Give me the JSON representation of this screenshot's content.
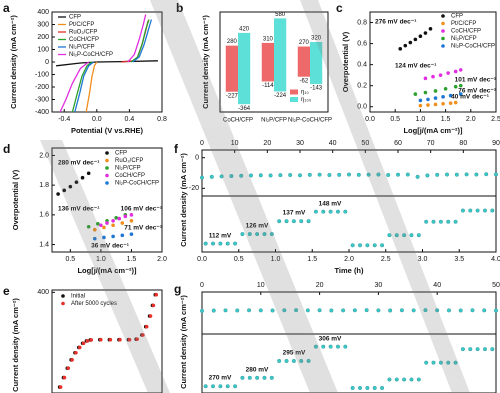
{
  "chart_data": [
    {
      "type": "line",
      "panel": "a",
      "xlabel": "Potential (V vs.RHE)",
      "ylabel": "Current density (mA cm⁻²)",
      "xlim": [
        -0.55,
        0.8
      ],
      "xticks": [
        -0.4,
        {
          "value": 0,
          "label": "0.0"
        },
        0.4,
        0.8
      ],
      "ylim": [
        -400,
        400
      ],
      "yticks": [
        400,
        300,
        200,
        100,
        0,
        -100,
        -200,
        -300,
        -400
      ],
      "series": [
        {
          "name": "CFP",
          "color": "#111111",
          "x": [
            -0.5,
            -0.2,
            0,
            0.3,
            0.75
          ],
          "values": [
            -30,
            -8,
            0,
            3,
            10
          ]
        },
        {
          "name": "Pt/C/CFP",
          "color": "#f28e1c",
          "x": [
            -0.13,
            -0.09,
            -0.06,
            -0.03,
            0
          ],
          "values": [
            -400,
            -250,
            -120,
            -30,
            0
          ]
        },
        {
          "name": "RuO₂/CFP",
          "color": "#e8302a",
          "x": [
            0.3,
            0.45,
            0.5,
            0.55,
            0.6,
            0.63
          ],
          "values": [
            0,
            10,
            40,
            130,
            250,
            330
          ]
        },
        {
          "name": "CoCH/CFP",
          "color": "#2ca02c",
          "x": [
            -0.3,
            -0.24,
            -0.18,
            -0.12,
            -0.06,
            null,
            0.42,
            0.5,
            0.56,
            0.6,
            0.64
          ],
          "values": [
            -400,
            -250,
            -110,
            -30,
            0,
            null,
            0,
            40,
            150,
            260,
            340
          ]
        },
        {
          "name": "Ni₂P/CFP",
          "color": "#1f77d4",
          "x": [
            -0.27,
            -0.21,
            -0.16,
            -0.1,
            -0.04,
            null,
            0.44,
            0.52,
            0.58,
            0.63,
            0.67
          ],
          "values": [
            -400,
            -250,
            -110,
            -30,
            0,
            null,
            0,
            40,
            140,
            250,
            340
          ]
        },
        {
          "name": "Ni₂P-CoCH/CFP",
          "color": "#e02ee0",
          "x": [
            -0.45,
            -0.38,
            -0.3,
            -0.2,
            -0.1,
            null,
            0.38,
            0.46,
            0.52,
            0.57,
            0.6
          ],
          "values": [
            -400,
            -300,
            -170,
            -50,
            0,
            null,
            0,
            60,
            180,
            300,
            380
          ]
        }
      ]
    },
    {
      "type": "bar",
      "panel": "b",
      "ylabel": "Current density (mA cm⁻²)",
      "ylim": [
        -450,
        650
      ],
      "categories": [
        "CoCH/CFP",
        "Ni₂P/CFP",
        "Ni₂P-CoCH/CFP"
      ],
      "series": [
        {
          "name": "η₁₀",
          "color": "#ee6a6a",
          "lower": [
            -227,
            -114,
            -62
          ],
          "upper": [
            280,
            310,
            270
          ]
        },
        {
          "name": "η₁₀₀",
          "color": "#5ce0d8",
          "lower": [
            -364,
            -224,
            -143
          ],
          "upper": [
            420,
            580,
            320
          ]
        }
      ]
    },
    {
      "type": "scatter",
      "panel": "c",
      "xlabel": "Log[j/(mA cm⁻²)]",
      "ylabel": "Overpotential (V)",
      "xlim": [
        0,
        2.5
      ],
      "xticks": [
        {
          "value": 0,
          "label": "0.0"
        },
        0.5,
        {
          "value": 1,
          "label": "1.0"
        },
        1.5,
        {
          "value": 2,
          "label": "2.0"
        },
        2.5
      ],
      "ylim": [
        -0.05,
        0.9
      ],
      "yticks": [
        {
          "value": 0,
          "label": "0.0"
        },
        0.2,
        0.4,
        0.6,
        0.8
      ],
      "series": [
        {
          "name": "CFP",
          "color": "#111111",
          "x": [
            0.6,
            0.7,
            0.8,
            0.9,
            1.0,
            1.1,
            1.2
          ],
          "values": [
            0.55,
            0.58,
            0.61,
            0.64,
            0.67,
            0.7,
            0.74
          ]
        },
        {
          "name": "Pt/C/CFP",
          "color": "#f28e1c",
          "x": [
            1.0,
            1.15,
            1.3,
            1.45,
            1.6,
            1.7
          ],
          "values": [
            0.01,
            0.016,
            0.022,
            0.028,
            0.034,
            0.04
          ]
        },
        {
          "name": "CoCH/CFP",
          "color": "#e02ee0",
          "x": [
            1.1,
            1.25,
            1.4,
            1.55,
            1.7,
            1.8
          ],
          "values": [
            0.27,
            0.285,
            0.3,
            0.32,
            0.335,
            0.35
          ]
        },
        {
          "name": "Ni₂P/CFP",
          "color": "#2ca02c",
          "x": [
            0.9,
            1.1,
            1.3,
            1.5,
            1.7,
            1.8
          ],
          "values": [
            0.12,
            0.135,
            0.15,
            0.17,
            0.19,
            0.2
          ]
        },
        {
          "name": "Ni₂P-CoCH/CFP",
          "color": "#1f77d4",
          "x": [
            1.0,
            1.15,
            1.3,
            1.45,
            1.6,
            1.8
          ],
          "values": [
            0.06,
            0.07,
            0.082,
            0.094,
            0.106,
            0.12
          ]
        }
      ],
      "annotations": [
        {
          "text": "276 mV dec⁻¹",
          "color": "#111111"
        },
        {
          "text": "124 mV dec⁻¹",
          "color": "#e02ee0"
        },
        {
          "text": "101 mV dec⁻¹",
          "color": "#2ca02c"
        },
        {
          "text": "76 mV dec⁻¹",
          "color": "#1f77d4"
        },
        {
          "text": "40 mV dec⁻¹",
          "color": "#f28e1c"
        }
      ]
    },
    {
      "type": "scatter",
      "panel": "d",
      "xlabel": "Log[j/(mA cm⁻²)]",
      "ylabel": "Overpotential (V)",
      "xlim": [
        0.2,
        2.0
      ],
      "xticks": [
        0.5,
        {
          "value": 1,
          "label": "1.0"
        },
        1.5,
        {
          "value": 2,
          "label": "2.0"
        }
      ],
      "ylim": [
        1.35,
        2.05
      ],
      "yticks": [
        1.4,
        1.6,
        1.8,
        {
          "value": 2,
          "label": "2.0"
        }
      ],
      "series": [
        {
          "name": "CFP",
          "color": "#111111",
          "x": [
            0.3,
            0.4,
            0.5,
            0.6,
            0.7,
            0.8
          ],
          "values": [
            1.74,
            1.765,
            1.79,
            1.82,
            1.85,
            1.88
          ]
        },
        {
          "name": "RuO₂/CFP",
          "color": "#f28e1c",
          "x": [
            0.9,
            1.05,
            1.2,
            1.35,
            1.5
          ],
          "values": [
            1.5,
            1.515,
            1.53,
            1.545,
            1.56
          ]
        },
        {
          "name": "Ni₂P/CFP",
          "color": "#2ca02c",
          "x": [
            0.8,
            0.95,
            1.1,
            1.25,
            1.4
          ],
          "values": [
            1.52,
            1.54,
            1.56,
            1.58,
            1.6
          ]
        },
        {
          "name": "CoCH/CFP",
          "color": "#e02ee0",
          "x": [
            1.0,
            1.1,
            1.2,
            1.3,
            1.4,
            1.5
          ],
          "values": [
            1.53,
            1.545,
            1.56,
            1.575,
            1.59,
            1.6
          ]
        },
        {
          "name": "Ni₂P-CoCH/CFP",
          "color": "#1f77d4",
          "x": [
            0.9,
            1.05,
            1.2,
            1.35,
            1.5
          ],
          "values": [
            1.44,
            1.448,
            1.455,
            1.462,
            1.47
          ]
        }
      ],
      "annotations": [
        {
          "text": "280 mV dec⁻¹",
          "color": "#111111"
        },
        {
          "text": "136 mV dec⁻¹",
          "color": "#2ca02c"
        },
        {
          "text": "106 mV dec⁻¹",
          "color": "#e02ee0"
        },
        {
          "text": "71 mV dec⁻¹",
          "color": "#f28e1c"
        },
        {
          "text": "36 mV dec⁻¹",
          "color": "#1f77d4"
        }
      ]
    },
    {
      "type": "scatter",
      "panel": "e",
      "ylabel": "Current density (mA cm⁻²)",
      "xlim": [
        -0.5,
        0.65
      ],
      "ylim": [
        -450,
        420
      ],
      "yticks": [
        400
      ],
      "series": [
        {
          "name": "Initial",
          "color": "#111111",
          "x": [
            -0.42,
            -0.38,
            -0.34,
            -0.3,
            -0.26,
            -0.22,
            -0.18,
            -0.14,
            -0.1,
            0,
            0.1,
            0.2,
            0.3,
            0.38,
            0.44,
            0.48,
            0.52,
            0.55,
            0.58
          ],
          "values": [
            -400,
            -320,
            -240,
            -170,
            -110,
            -65,
            -30,
            -10,
            -2,
            0,
            0,
            0,
            0,
            5,
            40,
            110,
            200,
            290,
            380
          ]
        },
        {
          "name": "After 5000 cycles",
          "color": "#e8302a",
          "x": [
            -0.41,
            -0.37,
            -0.33,
            -0.29,
            -0.25,
            -0.21,
            -0.17,
            -0.13,
            -0.09,
            0.01,
            0.11,
            0.21,
            0.31,
            0.39,
            0.45,
            0.49,
            0.53,
            0.56,
            0.59
          ],
          "values": [
            -400,
            -320,
            -240,
            -170,
            -110,
            -65,
            -30,
            -10,
            -2,
            0,
            0,
            0,
            0,
            5,
            40,
            110,
            200,
            290,
            380
          ]
        }
      ]
    },
    {
      "type": "scatter",
      "panel": "f",
      "ylabel": "Current density (mA cm⁻²)",
      "xaxis": "top",
      "xlim": [
        0,
        90
      ],
      "xticks": [
        0,
        10,
        20,
        30,
        40,
        50,
        60,
        70,
        80,
        90
      ],
      "ylim": [
        -25,
        5
      ],
      "yticks": [
        0,
        -20
      ],
      "series": [
        {
          "name": null,
          "color": "#3cc8c8",
          "x": [
            0,
            3,
            6,
            9,
            12,
            15,
            18,
            21,
            24,
            27,
            30,
            33,
            36,
            39,
            42,
            45,
            48,
            51,
            54,
            57,
            60,
            63,
            66,
            69,
            72,
            75,
            78,
            81,
            84,
            87,
            90
          ],
          "values": [
            -13,
            -12.5,
            -12.2,
            -12,
            -11.8,
            -11.6,
            -11.5,
            -11.6,
            -11.4,
            -11.3,
            -11.5,
            -11.2,
            -11.1,
            -11.3,
            -11.2,
            -11,
            -11.2,
            -11.1,
            -11,
            -11.3,
            -11.1,
            -11,
            -12.5,
            -11.6,
            -11.2,
            -11,
            -11.1,
            -10.9,
            -11,
            -10.8,
            -10.9
          ]
        }
      ]
    },
    {
      "type": "scatter",
      "xlabel": "Time (h)",
      "xlim": [
        0,
        4
      ],
      "xticks": [
        {
          "value": 0,
          "label": "0.0"
        },
        0.5,
        {
          "value": 1,
          "label": "1.0"
        },
        1.5,
        {
          "value": 2,
          "label": "2.0"
        },
        2.5,
        {
          "value": 3,
          "label": "3.0"
        },
        3.5,
        {
          "value": 4,
          "label": "4.0"
        }
      ],
      "ylim": [
        -110,
        -10
      ],
      "series": [
        {
          "name": null,
          "color": "#3cc8c8",
          "x": [
            0.05,
            0.15,
            0.25,
            0.35,
            0.45,
            0.55,
            0.65,
            0.75,
            0.85,
            0.95,
            1.05,
            1.15,
            1.25,
            1.35,
            1.45,
            1.55,
            1.65,
            1.75,
            1.85,
            1.95,
            2.05,
            2.15,
            2.25,
            2.35,
            2.45,
            2.55,
            2.65,
            2.75,
            2.85,
            2.95,
            3.05,
            3.15,
            3.25,
            3.35,
            3.45,
            3.55,
            3.65,
            3.75,
            3.85,
            3.95
          ],
          "values": [
            -95,
            -95,
            -95,
            -95,
            -95,
            -78,
            -78,
            -78,
            -78,
            -78,
            -55,
            -55,
            -55,
            -55,
            -55,
            -38,
            -38,
            -38,
            -38,
            -38,
            -98,
            -98,
            -98,
            -98,
            -98,
            -80,
            -80,
            -80,
            -80,
            -80,
            -56,
            -56,
            -56,
            -56,
            -56,
            -36,
            -36,
            -36,
            -36,
            -36
          ]
        }
      ],
      "annotations": [
        {
          "text": "112 mV",
          "color": "#111111"
        },
        {
          "text": "126 mV",
          "color": "#111111"
        },
        {
          "text": "137 mV",
          "color": "#111111"
        },
        {
          "text": "148 mV",
          "color": "#111111"
        }
      ]
    },
    {
      "type": "scatter",
      "panel": "g",
      "ylabel": "Current density (mA cm⁻²)",
      "xaxis": "top",
      "xlim": [
        0,
        50
      ],
      "xticks": [
        0,
        10,
        20,
        30,
        40,
        50
      ],
      "ylim": [
        0,
        40
      ],
      "series": [
        {
          "name": null,
          "color": "#3cc8c8",
          "x": [
            0,
            2,
            4,
            6,
            8,
            10,
            12,
            14,
            16,
            18,
            20,
            22,
            24,
            26,
            28,
            30,
            32,
            34,
            36,
            38,
            40,
            42,
            44,
            46,
            48,
            50
          ],
          "values": [
            22,
            22.3,
            22.5,
            22.4,
            22.6,
            22.5,
            22.4,
            22.6,
            22.7,
            22.5,
            22.6,
            22.4,
            22.5,
            22.6,
            22.7,
            22.5,
            22.4,
            22.6,
            22.5,
            22.7,
            22.6,
            22.5,
            22.4,
            22.6,
            22.5,
            22.4
          ]
        }
      ]
    },
    {
      "type": "scatter",
      "xlim": [
        0,
        4
      ],
      "ylim": [
        0,
        70
      ],
      "series": [
        {
          "name": null,
          "color": "#3cc8c8",
          "x": [
            0.05,
            0.15,
            0.25,
            0.35,
            0.45,
            0.55,
            0.65,
            0.75,
            0.85,
            0.95,
            1.05,
            1.15,
            1.25,
            1.35,
            1.45,
            1.55,
            1.65,
            1.75,
            1.85,
            1.95,
            2.05,
            2.15,
            2.25,
            2.35,
            2.45,
            2.55,
            2.65,
            2.75,
            2.85,
            2.95,
            3.05,
            3.15,
            3.25,
            3.35,
            3.45,
            3.55,
            3.65,
            3.75,
            3.85,
            3.95
          ],
          "values": [
            8,
            8,
            8,
            8,
            8,
            18,
            18,
            18,
            18,
            18,
            38,
            38,
            38,
            38,
            38,
            55,
            55,
            55,
            55,
            55,
            6,
            6,
            6,
            6,
            6,
            16,
            16,
            16,
            16,
            16,
            36,
            36,
            36,
            36,
            36,
            52,
            52,
            52,
            52,
            52
          ]
        }
      ],
      "annotations": [
        {
          "text": "270 mV",
          "color": "#111111"
        },
        {
          "text": "280 mV",
          "color": "#111111"
        },
        {
          "text": "295 mV",
          "color": "#111111"
        },
        {
          "text": "306 mV",
          "color": "#111111"
        }
      ]
    }
  ]
}
